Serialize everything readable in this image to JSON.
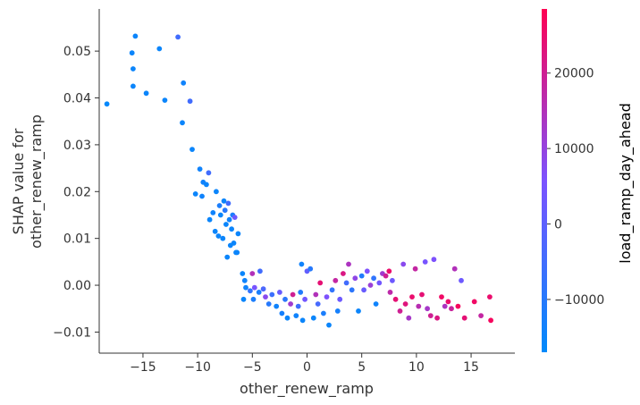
{
  "chart_data": {
    "type": "scatter",
    "title": "",
    "xlabel": "other_renew_ramp",
    "ylabel_lines": [
      "SHAP value for",
      "other_renew_ramp"
    ],
    "xlim": [
      -19,
      19
    ],
    "ylim": [
      -0.0145,
      0.059
    ],
    "x_ticks": [
      -15,
      -10,
      -5,
      0,
      5,
      10,
      15
    ],
    "x_tick_labels": [
      "−15",
      "−10",
      "−5",
      "0",
      "5",
      "10",
      "15"
    ],
    "y_ticks": [
      -0.01,
      0.0,
      0.01,
      0.02,
      0.03,
      0.04,
      0.05
    ],
    "y_tick_labels": [
      "−0.01",
      "0.00",
      "0.01",
      "0.02",
      "0.03",
      "0.04",
      "0.05"
    ],
    "grid": false,
    "colorbar": {
      "label": "load_ramp_day_ahead",
      "range": [
        -17000,
        28500
      ],
      "ticks": [
        -10000,
        0,
        10000,
        20000
      ],
      "tick_labels": [
        "−10000",
        "0",
        "10000",
        "20000"
      ],
      "color_low": "#008afb",
      "color_mid": "#7c52ff",
      "color_high": "#ff0052"
    },
    "points": [
      {
        "x": -18.3,
        "y": 0.0387,
        "c": -16000
      },
      {
        "x": -16.0,
        "y": 0.0496,
        "c": -15000
      },
      {
        "x": -15.7,
        "y": 0.0532,
        "c": -15000
      },
      {
        "x": -15.9,
        "y": 0.0462,
        "c": -15000
      },
      {
        "x": -15.9,
        "y": 0.0425,
        "c": -15000
      },
      {
        "x": -14.7,
        "y": 0.041,
        "c": -15000
      },
      {
        "x": -13.5,
        "y": 0.0505,
        "c": -15000
      },
      {
        "x": -13.0,
        "y": 0.0395,
        "c": -15000
      },
      {
        "x": -11.8,
        "y": 0.053,
        "c": -5000
      },
      {
        "x": -11.3,
        "y": 0.0432,
        "c": -14000
      },
      {
        "x": -10.7,
        "y": 0.0393,
        "c": -5000
      },
      {
        "x": -11.4,
        "y": 0.0347,
        "c": -15000
      },
      {
        "x": -10.5,
        "y": 0.029,
        "c": -15000
      },
      {
        "x": -9.8,
        "y": 0.0248,
        "c": -14000
      },
      {
        "x": -9.0,
        "y": 0.024,
        "c": -5000
      },
      {
        "x": -9.5,
        "y": 0.022,
        "c": -14000
      },
      {
        "x": -9.2,
        "y": 0.0215,
        "c": -15000
      },
      {
        "x": -10.2,
        "y": 0.0195,
        "c": -15000
      },
      {
        "x": -8.3,
        "y": 0.02,
        "c": -15000
      },
      {
        "x": -9.6,
        "y": 0.019,
        "c": -14000
      },
      {
        "x": -7.6,
        "y": 0.018,
        "c": -15000
      },
      {
        "x": -7.2,
        "y": 0.0175,
        "c": -5000
      },
      {
        "x": -8.0,
        "y": 0.017,
        "c": -12000
      },
      {
        "x": -7.5,
        "y": 0.016,
        "c": -10000
      },
      {
        "x": -8.6,
        "y": 0.0155,
        "c": -14000
      },
      {
        "x": -7.9,
        "y": 0.015,
        "c": -15000
      },
      {
        "x": -6.8,
        "y": 0.015,
        "c": -12000
      },
      {
        "x": -7.1,
        "y": 0.014,
        "c": -14000
      },
      {
        "x": -6.6,
        "y": 0.0145,
        "c": 3000
      },
      {
        "x": -8.9,
        "y": 0.014,
        "c": -15000
      },
      {
        "x": -7.4,
        "y": 0.013,
        "c": -15000
      },
      {
        "x": -6.9,
        "y": 0.012,
        "c": -15000
      },
      {
        "x": -8.4,
        "y": 0.0115,
        "c": -15000
      },
      {
        "x": -6.3,
        "y": 0.011,
        "c": -15000
      },
      {
        "x": -7.7,
        "y": 0.01,
        "c": -15000
      },
      {
        "x": -8.1,
        "y": 0.0105,
        "c": -15000
      },
      {
        "x": -6.7,
        "y": 0.009,
        "c": -15000
      },
      {
        "x": -7.0,
        "y": 0.0085,
        "c": -15000
      },
      {
        "x": -6.4,
        "y": 0.007,
        "c": -15000
      },
      {
        "x": -7.3,
        "y": 0.006,
        "c": -15000
      },
      {
        "x": -6.5,
        "y": 0.007,
        "c": -15000
      },
      {
        "x": -5.9,
        "y": 0.0025,
        "c": -15000
      },
      {
        "x": -5.7,
        "y": 0.001,
        "c": -14000
      },
      {
        "x": -5.0,
        "y": 0.0025,
        "c": 15000
      },
      {
        "x": -4.3,
        "y": 0.003,
        "c": -5000
      },
      {
        "x": -5.6,
        "y": -0.0005,
        "c": -14000
      },
      {
        "x": -5.2,
        "y": -0.0012,
        "c": -8000
      },
      {
        "x": -4.8,
        "y": -0.0005,
        "c": 5000
      },
      {
        "x": -4.4,
        "y": -0.0015,
        "c": -12000
      },
      {
        "x": -4.0,
        "y": -0.0008,
        "c": -3000
      },
      {
        "x": -5.8,
        "y": -0.003,
        "c": -15000
      },
      {
        "x": -4.9,
        "y": -0.003,
        "c": -12000
      },
      {
        "x": -3.8,
        "y": -0.0025,
        "c": 8000
      },
      {
        "x": -3.5,
        "y": -0.004,
        "c": -10000
      },
      {
        "x": -3.2,
        "y": -0.002,
        "c": -6000
      },
      {
        "x": -2.8,
        "y": -0.0045,
        "c": -14000
      },
      {
        "x": -2.5,
        "y": -0.0015,
        "c": 2000
      },
      {
        "x": -2.3,
        "y": -0.006,
        "c": -13000
      },
      {
        "x": -2.0,
        "y": -0.003,
        "c": -9000
      },
      {
        "x": -1.8,
        "y": -0.007,
        "c": -15000
      },
      {
        "x": -1.5,
        "y": -0.004,
        "c": 12000
      },
      {
        "x": -1.3,
        "y": -0.002,
        "c": 20000
      },
      {
        "x": -1.0,
        "y": -0.0065,
        "c": -14000
      },
      {
        "x": -0.8,
        "y": -0.0045,
        "c": -6000
      },
      {
        "x": -0.6,
        "y": -0.0015,
        "c": -11000
      },
      {
        "x": -0.4,
        "y": -0.0075,
        "c": -15000
      },
      {
        "x": -0.2,
        "y": -0.003,
        "c": 4000
      },
      {
        "x": 0.0,
        "y": 0.003,
        "c": 1000
      },
      {
        "x": -0.5,
        "y": 0.0045,
        "c": -14000
      },
      {
        "x": 0.3,
        "y": 0.0035,
        "c": -10000
      },
      {
        "x": 0.6,
        "y": -0.007,
        "c": -15000
      },
      {
        "x": 0.8,
        "y": -0.002,
        "c": 15000
      },
      {
        "x": 1.0,
        "y": -0.004,
        "c": -4000
      },
      {
        "x": 1.2,
        "y": 0.0005,
        "c": 24000
      },
      {
        "x": 1.5,
        "y": -0.006,
        "c": -12000
      },
      {
        "x": 1.8,
        "y": -0.0025,
        "c": 6000
      },
      {
        "x": 2.0,
        "y": -0.0085,
        "c": -15000
      },
      {
        "x": 2.3,
        "y": -0.001,
        "c": -8000
      },
      {
        "x": 2.6,
        "y": 0.001,
        "c": 18000
      },
      {
        "x": 2.8,
        "y": -0.0055,
        "c": -13000
      },
      {
        "x": 3.0,
        "y": -0.003,
        "c": 3000
      },
      {
        "x": 3.3,
        "y": 0.0025,
        "c": 22000
      },
      {
        "x": 3.6,
        "y": 0.0005,
        "c": -5000
      },
      {
        "x": 3.8,
        "y": 0.0045,
        "c": 14000
      },
      {
        "x": 4.1,
        "y": -0.001,
        "c": -9000
      },
      {
        "x": 4.4,
        "y": 0.0015,
        "c": 9000
      },
      {
        "x": 4.7,
        "y": -0.0055,
        "c": -15000
      },
      {
        "x": 5.0,
        "y": 0.002,
        "c": -11000
      },
      {
        "x": 5.2,
        "y": -0.001,
        "c": 2000
      },
      {
        "x": 5.5,
        "y": 0.003,
        "c": 6000
      },
      {
        "x": 5.8,
        "y": 0.0,
        "c": 11000
      },
      {
        "x": 6.1,
        "y": 0.0015,
        "c": -8000
      },
      {
        "x": 6.3,
        "y": -0.004,
        "c": -14000
      },
      {
        "x": 6.6,
        "y": 0.0005,
        "c": 4000
      },
      {
        "x": 6.9,
        "y": 0.0025,
        "c": 12000
      },
      {
        "x": 7.2,
        "y": 0.002,
        "c": 20000
      },
      {
        "x": 7.5,
        "y": 0.003,
        "c": 25000
      },
      {
        "x": 7.6,
        "y": -0.0015,
        "c": 17000
      },
      {
        "x": 7.8,
        "y": 0.001,
        "c": 3000
      },
      {
        "x": 8.1,
        "y": -0.003,
        "c": 24000
      },
      {
        "x": 8.5,
        "y": -0.0055,
        "c": 20000
      },
      {
        "x": 8.8,
        "y": 0.0045,
        "c": 8000
      },
      {
        "x": 9.0,
        "y": -0.004,
        "c": 23000
      },
      {
        "x": 9.3,
        "y": -0.007,
        "c": 13000
      },
      {
        "x": 9.6,
        "y": -0.0025,
        "c": 25000
      },
      {
        "x": 9.9,
        "y": 0.0035,
        "c": 18000
      },
      {
        "x": 10.2,
        "y": -0.0045,
        "c": 16000
      },
      {
        "x": 10.5,
        "y": -0.002,
        "c": 24000
      },
      {
        "x": 10.8,
        "y": 0.005,
        "c": 5000
      },
      {
        "x": 11.0,
        "y": -0.005,
        "c": 13000
      },
      {
        "x": 11.3,
        "y": -0.0065,
        "c": 20000
      },
      {
        "x": 11.6,
        "y": 0.0055,
        "c": 6000
      },
      {
        "x": 11.9,
        "y": -0.007,
        "c": 22000
      },
      {
        "x": 12.3,
        "y": -0.0025,
        "c": 26000
      },
      {
        "x": 12.6,
        "y": -0.0045,
        "c": 14000
      },
      {
        "x": 12.9,
        "y": -0.0035,
        "c": 25000
      },
      {
        "x": 13.2,
        "y": -0.005,
        "c": 19000
      },
      {
        "x": 13.5,
        "y": 0.0035,
        "c": 15000
      },
      {
        "x": 13.8,
        "y": -0.0045,
        "c": 27000
      },
      {
        "x": 14.1,
        "y": 0.001,
        "c": 3000
      },
      {
        "x": 14.4,
        "y": -0.007,
        "c": 24000
      },
      {
        "x": 15.3,
        "y": -0.0035,
        "c": 26000
      },
      {
        "x": 15.9,
        "y": -0.0065,
        "c": 18000
      },
      {
        "x": 16.7,
        "y": -0.0025,
        "c": 25000
      },
      {
        "x": 16.8,
        "y": -0.0075,
        "c": 27000
      }
    ]
  }
}
